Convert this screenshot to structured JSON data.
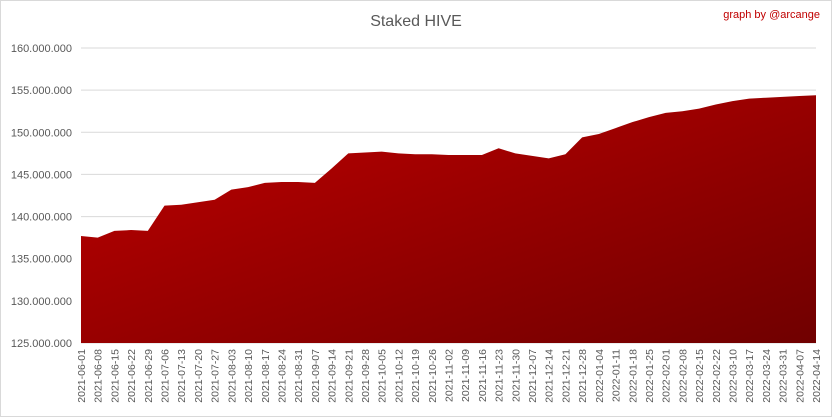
{
  "chart_data": {
    "type": "area",
    "title": "Staked HIVE",
    "annotation": "graph by @arcange",
    "color": "#a00000",
    "grid": true,
    "categories": [
      "2021-06-01",
      "2021-06-08",
      "2021-06-15",
      "2021-06-22",
      "2021-06-29",
      "2021-07-06",
      "2021-07-13",
      "2021-07-20",
      "2021-07-27",
      "2021-08-03",
      "2021-08-10",
      "2021-08-17",
      "2021-08-24",
      "2021-08-31",
      "2021-09-07",
      "2021-09-14",
      "2021-09-21",
      "2021-09-28",
      "2021-10-05",
      "2021-10-12",
      "2021-10-19",
      "2021-10-26",
      "2021-11-02",
      "2021-11-09",
      "2021-11-16",
      "2021-11-23",
      "2021-11-30",
      "2021-12-07",
      "2021-12-14",
      "2021-12-21",
      "2021-12-28",
      "2022-01-04",
      "2022-01-11",
      "2022-01-18",
      "2022-01-25",
      "2022-02-01",
      "2022-02-08",
      "2022-02-15",
      "2022-02-22",
      "2022-03-10",
      "2022-03-17",
      "2022-03-24",
      "2022-03-31",
      "2022-04-07",
      "2022-04-14"
    ],
    "values": [
      137700000,
      137500000,
      138300000,
      138400000,
      138300000,
      141300000,
      141400000,
      141700000,
      142000000,
      143200000,
      143500000,
      144000000,
      144100000,
      144100000,
      144000000,
      145700000,
      147500000,
      147600000,
      147700000,
      147500000,
      147400000,
      147400000,
      147300000,
      147300000,
      147300000,
      148100000,
      147500000,
      147200000,
      146900000,
      147400000,
      149400000,
      149800000,
      150500000,
      151200000,
      151800000,
      152300000,
      152500000,
      152800000,
      153300000,
      153700000,
      154000000,
      154100000,
      154200000,
      154300000,
      154400000
    ],
    "ylim": [
      125000000,
      160000000
    ],
    "yticks": [
      {
        "value": 125000000,
        "label": "125.000.000"
      },
      {
        "value": 130000000,
        "label": "130.000.000"
      },
      {
        "value": 135000000,
        "label": "135.000.000"
      },
      {
        "value": 140000000,
        "label": "140.000.000"
      },
      {
        "value": 145000000,
        "label": "145.000.000"
      },
      {
        "value": 150000000,
        "label": "150.000.000"
      },
      {
        "value": 155000000,
        "label": "155.000.000"
      },
      {
        "value": 160000000,
        "label": "160.000.000"
      }
    ]
  }
}
